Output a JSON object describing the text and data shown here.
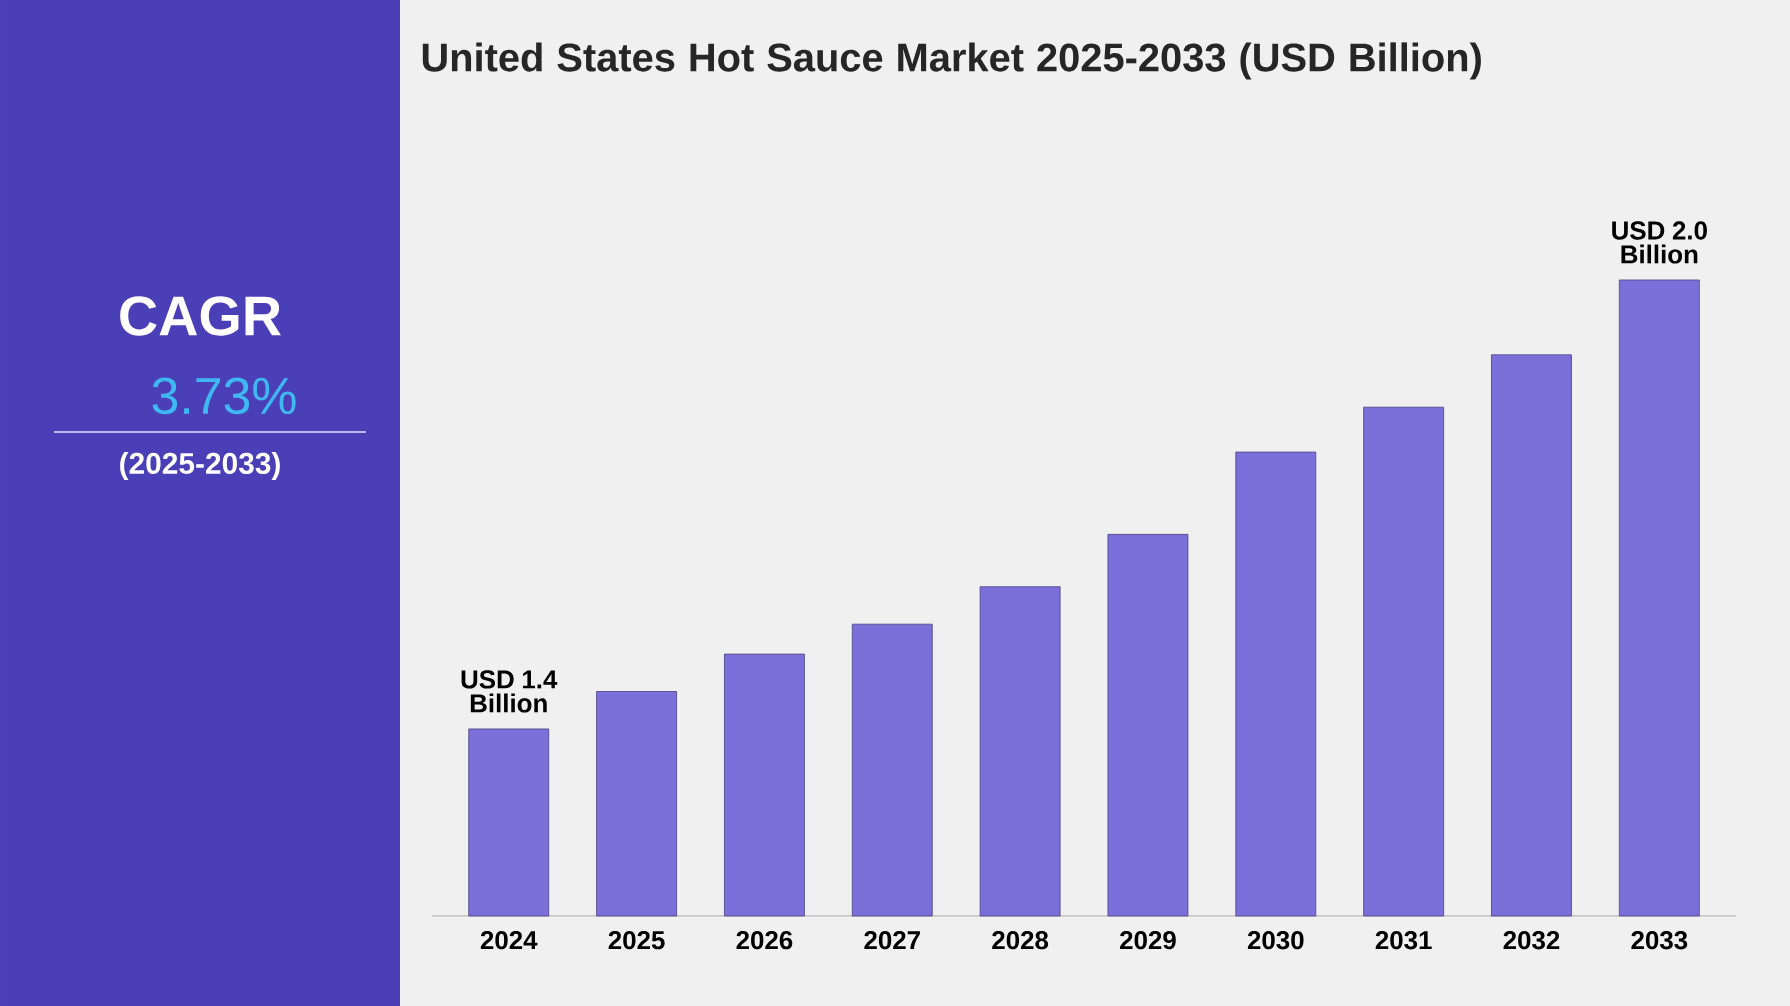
{
  "chart_data": {
    "type": "bar",
    "title": "United States Hot Sauce Market 2025-2033 (USD Billion)",
    "categories": [
      "2024",
      "2025",
      "2026",
      "2027",
      "2028",
      "2029",
      "2030",
      "2031",
      "2032",
      "2033"
    ],
    "values": [
      1.4,
      1.45,
      1.5,
      1.54,
      1.59,
      1.66,
      1.77,
      1.83,
      1.9,
      2.0
    ],
    "color": "#7b6fd9",
    "value_labels": [
      "USD 1.4 Billion",
      null,
      null,
      null,
      null,
      null,
      null,
      null,
      null,
      "USD 2.0 Billion"
    ],
    "ylim": [
      1.15,
      2.0
    ],
    "tick_labels": "x",
    "annotations": [
      "CAGR",
      "3.73%",
      "(2025-2033)"
    ]
  }
}
